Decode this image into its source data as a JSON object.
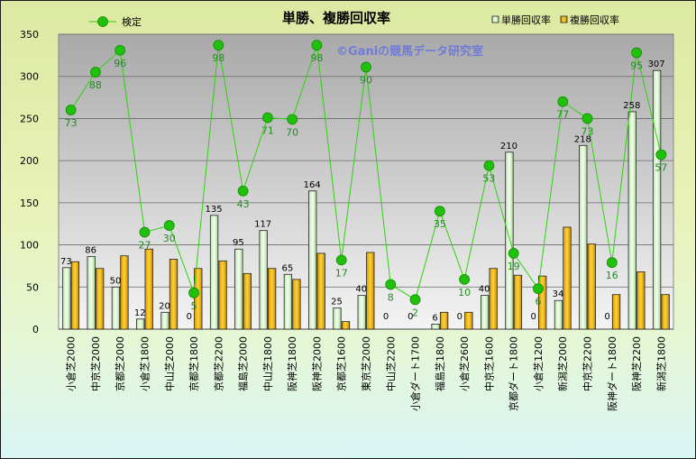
{
  "chart_data": {
    "type": "bar",
    "title": "単勝、複勝回収率",
    "watermark": "©Ganiの競馬データ研究室",
    "ylim": [
      0,
      350
    ],
    "yticks": [
      0,
      50,
      100,
      150,
      200,
      250,
      300,
      350
    ],
    "grid": true,
    "legend_placement": "top",
    "categories": [
      "小倉芝2000",
      "中京芝2000",
      "京都芝2000",
      "小倉芝1800",
      "中山芝2000",
      "京都芝1800",
      "京都芝2200",
      "福島芝2000",
      "中山芝1800",
      "阪神芝1800",
      "阪神芝2000",
      "京都芝1600",
      "東京芝2000",
      "中山芝2200",
      "小倉ダート1700",
      "福島芝1800",
      "小倉芝2600",
      "中京芝1600",
      "京都ダート1800",
      "小倉芝1200",
      "新潟芝2000",
      "中京芝2200",
      "阪神ダート1800",
      "阪神芝2200",
      "新潟芝1800"
    ],
    "series": [
      {
        "name": "単勝回収率",
        "kind": "bar",
        "color": "#d7f2c8",
        "values": [
          73,
          86,
          50,
          12,
          20,
          0,
          135,
          95,
          117,
          65,
          164,
          25,
          40,
          0,
          0,
          6,
          0,
          40,
          210,
          0,
          34,
          218,
          0,
          258,
          307
        ],
        "labels": [
          "73",
          "86",
          "50",
          "12",
          "20",
          "0",
          "135",
          "95",
          "117",
          "65",
          "164",
          "25",
          "40",
          "0",
          "0",
          "6",
          "0",
          "40",
          "210",
          "0",
          "34",
          "218",
          "0",
          "258",
          "307"
        ]
      },
      {
        "name": "複勝回収率",
        "kind": "bar",
        "color": "#f0b400",
        "values": [
          80,
          72,
          87,
          95,
          83,
          72,
          81,
          66,
          72,
          59,
          90,
          9,
          91,
          0,
          0,
          20,
          20,
          72,
          64,
          63,
          121,
          101,
          41,
          68,
          41
        ]
      },
      {
        "name": "検定",
        "kind": "line",
        "color": "#2fd10f",
        "values": [
          260,
          305,
          331,
          115,
          123,
          43,
          337,
          164,
          251,
          249,
          337,
          82,
          311,
          53,
          35,
          140,
          59,
          194,
          90,
          48,
          270,
          250,
          79,
          328,
          207
        ],
        "labels": [
          "73",
          "88",
          "96",
          "27",
          "30",
          "5",
          "98",
          "43",
          "71",
          "70",
          "98",
          "17",
          "90",
          "8",
          "2",
          "35",
          "10",
          "53",
          "19",
          "6",
          "77",
          "73",
          "16",
          "95",
          "57"
        ]
      }
    ]
  }
}
